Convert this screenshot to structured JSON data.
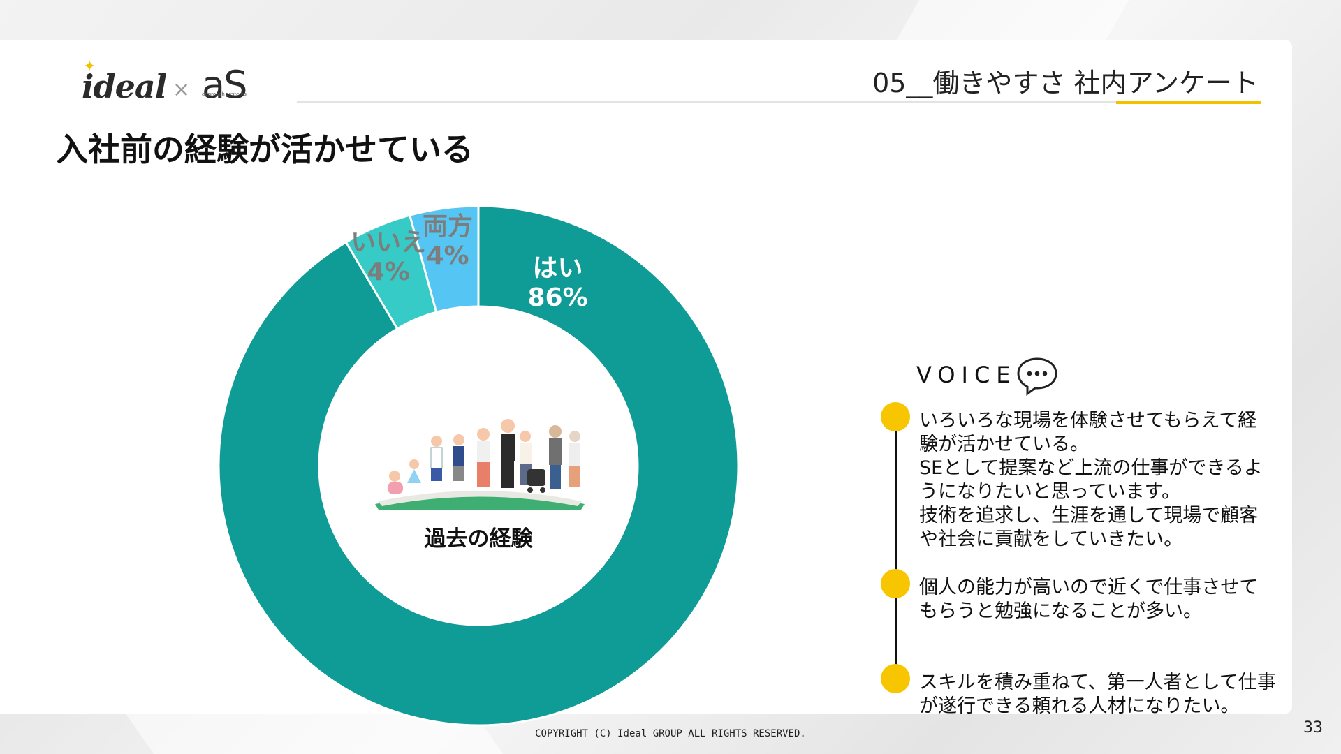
{
  "brand": {
    "logo_main": "ideal",
    "logo_sep": "×",
    "logo_partner": "aS",
    "logo_partner_sub": "approach systems"
  },
  "header": {
    "section_title": "05__働きやすさ 社内アンケート"
  },
  "page_title": "入社前の経験が活かせている",
  "chart_data": {
    "type": "pie",
    "variant": "donut",
    "center_label": "過去の経験",
    "slices": [
      {
        "label": "はい",
        "value": 86,
        "display": "86%",
        "color": "#0f9b96"
      },
      {
        "label": "いいえ",
        "value": 4,
        "display": "4%",
        "color": "#36cbc6"
      },
      {
        "label": "両方",
        "value": 4,
        "display": "4%",
        "color": "#55c6f4"
      }
    ]
  },
  "voice": {
    "heading": "VOICE",
    "icon": "speech-bubble-icon",
    "items": [
      {
        "lines": [
          "いろいろな現場を体験させてもらえて経",
          "験が活かせている。",
          "SEとして提案など上流の仕事ができるよ",
          "うになりたいと思っています。",
          "技術を追求し、生涯を通して現場で顧客",
          "や社会に貢献をしていきたい。"
        ]
      },
      {
        "lines": [
          "個人の能力が高いので近くで仕事させて",
          "もらうと勉強になることが多い。"
        ]
      },
      {
        "lines": [
          "スキルを積み重ねて、第一人者として仕事",
          "が遂行できる頼れる人材になりたい。"
        ]
      }
    ]
  },
  "footer": {
    "copyright": "COPYRIGHT (C) Ideal GROUP ALL RIGHTS RESERVED.",
    "page_number": "33"
  },
  "colors": {
    "accent": "#f2c200",
    "dot": "#f7c600"
  }
}
